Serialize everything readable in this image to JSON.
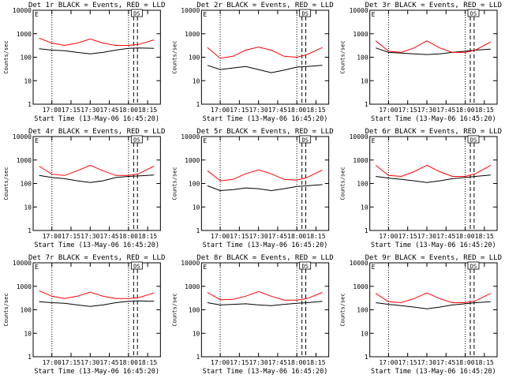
{
  "layout": {
    "rows": 3,
    "cols": 3
  },
  "colors": {
    "events": "#000000",
    "lld": "#ff0000",
    "axes": "#000000",
    "background": "#ffffff"
  },
  "chart_data": [
    {
      "type": "line",
      "title": "Det 1r BLACK = Events, RED = LLD",
      "ylabel": "Counts/sec",
      "xlabel": "Start Time (13-May-06 16:45:20)",
      "xticks": [
        "17:00",
        "17:15",
        "17:30",
        "17:45",
        "18:00",
        "18:15"
      ],
      "yticks": [
        "1",
        "10",
        "100",
        "1000",
        "10000"
      ],
      "ylim": [
        1,
        10000
      ],
      "yscale": "log",
      "x_range": [
        "16:45:20",
        "18:25:00"
      ],
      "legend_marks": [
        "E",
        "D",
        "S"
      ],
      "series": [
        {
          "x": [
            "16:50",
            "17:00",
            "17:10",
            "17:20",
            "17:30",
            "17:40",
            "17:50",
            "18:00",
            "18:08",
            "18:20"
          ],
          "values": [
            230,
            200,
            190,
            160,
            140,
            160,
            200,
            240,
            250,
            240
          ]
        },
        {
          "x": [
            "16:50",
            "17:00",
            "17:10",
            "17:20",
            "17:30",
            "17:40",
            "17:50",
            "18:00",
            "18:08",
            "18:20"
          ],
          "values": [
            650,
            400,
            320,
            400,
            600,
            400,
            320,
            320,
            350,
            550
          ]
        }
      ],
      "dotted_lines": [
        "17:00",
        "18:00"
      ],
      "dashed_lines": [
        "18:04",
        "18:07"
      ]
    },
    {
      "type": "line",
      "title": "Det 2r BLACK = Events, RED = LLD",
      "ylabel": "Counts/sec",
      "xlabel": "Start Time (13-May-06 16:45:20)",
      "xticks": [
        "17:00",
        "17:15",
        "17:30",
        "17:45",
        "18:00",
        "18:15"
      ],
      "yticks": [
        "1",
        "10",
        "100",
        "1000",
        "10000"
      ],
      "ylim": [
        1,
        10000
      ],
      "yscale": "log",
      "x_range": [
        "16:45:20",
        "18:25:00"
      ],
      "legend_marks": [
        "E",
        "D",
        "S"
      ],
      "series": [
        {
          "x": [
            "16:50",
            "17:00",
            "17:10",
            "17:20",
            "17:30",
            "17:40",
            "17:50",
            "18:00",
            "18:08",
            "18:20"
          ],
          "values": [
            45,
            30,
            35,
            40,
            30,
            22,
            28,
            38,
            40,
            45
          ]
        },
        {
          "x": [
            "16:50",
            "17:00",
            "17:10",
            "17:20",
            "17:30",
            "17:40",
            "17:50",
            "18:00",
            "18:08",
            "18:20"
          ],
          "values": [
            260,
            90,
            110,
            200,
            270,
            200,
            110,
            100,
            130,
            260
          ]
        }
      ],
      "dotted_lines": [
        "17:00",
        "18:00"
      ],
      "dashed_lines": [
        "18:04",
        "18:07"
      ]
    },
    {
      "type": "line",
      "title": "Det 3r BLACK = Events, RED = LLD",
      "ylabel": "Counts/sec",
      "xlabel": "Start Time (13-May-06 16:45:20)",
      "xticks": [
        "17:00",
        "17:15",
        "17:30",
        "17:45",
        "18:00",
        "18:15"
      ],
      "yticks": [
        "1",
        "10",
        "100",
        "1000",
        "10000"
      ],
      "ylim": [
        1,
        10000
      ],
      "yscale": "log",
      "x_range": [
        "16:45:20",
        "18:25:00"
      ],
      "legend_marks": [
        "E",
        "D",
        "S"
      ],
      "series": [
        {
          "x": [
            "16:50",
            "17:00",
            "17:10",
            "17:20",
            "17:30",
            "17:40",
            "17:50",
            "18:00",
            "18:08",
            "18:20"
          ],
          "values": [
            250,
            160,
            150,
            140,
            130,
            140,
            160,
            180,
            200,
            220
          ]
        },
        {
          "x": [
            "16:50",
            "17:00",
            "17:10",
            "17:20",
            "17:30",
            "17:40",
            "17:50",
            "18:00",
            "18:08",
            "18:20"
          ],
          "values": [
            500,
            180,
            160,
            250,
            500,
            250,
            160,
            160,
            200,
            450
          ]
        }
      ],
      "dotted_lines": [
        "17:00",
        "18:00"
      ],
      "dashed_lines": [
        "18:04",
        "18:07"
      ]
    },
    {
      "type": "line",
      "title": "Det 4r BLACK = Events, RED = LLD",
      "ylabel": "Counts/sec",
      "xlabel": "Start Time (13-May-06 16:45:20)",
      "xticks": [
        "17:00",
        "17:15",
        "17:30",
        "17:45",
        "18:00",
        "18:15"
      ],
      "yticks": [
        "1",
        "10",
        "100",
        "1000",
        "10000"
      ],
      "ylim": [
        1,
        10000
      ],
      "yscale": "log",
      "x_range": [
        "16:45:20",
        "18:25:00"
      ],
      "legend_marks": [
        "E",
        "D",
        "S"
      ],
      "series": [
        {
          "x": [
            "16:50",
            "17:00",
            "17:10",
            "17:20",
            "17:30",
            "17:40",
            "17:50",
            "18:00",
            "18:08",
            "18:20"
          ],
          "values": [
            220,
            180,
            160,
            130,
            110,
            130,
            180,
            200,
            210,
            230
          ]
        },
        {
          "x": [
            "16:50",
            "17:00",
            "17:10",
            "17:20",
            "17:30",
            "17:40",
            "17:50",
            "18:00",
            "18:08",
            "18:20"
          ],
          "values": [
            550,
            250,
            220,
            350,
            600,
            350,
            220,
            220,
            260,
            550
          ]
        }
      ],
      "dotted_lines": [
        "17:00",
        "18:00"
      ],
      "dashed_lines": [
        "18:04",
        "18:07"
      ]
    },
    {
      "type": "line",
      "title": "Det 5r BLACK = Events, RED = LLD",
      "ylabel": "Counts/sec",
      "xlabel": "Start Time (13-May-06 16:45:20)",
      "xticks": [
        "17:00",
        "17:15",
        "17:30",
        "17:45",
        "18:00",
        "18:15"
      ],
      "yticks": [
        "1",
        "10",
        "100",
        "1000",
        "10000"
      ],
      "ylim": [
        1,
        10000
      ],
      "yscale": "log",
      "x_range": [
        "16:45:20",
        "18:25:00"
      ],
      "legend_marks": [
        "E",
        "D",
        "S"
      ],
      "series": [
        {
          "x": [
            "16:50",
            "17:00",
            "17:10",
            "17:20",
            "17:30",
            "17:40",
            "17:50",
            "18:00",
            "18:08",
            "18:20"
          ],
          "values": [
            80,
            50,
            55,
            65,
            60,
            50,
            60,
            75,
            80,
            90
          ]
        },
        {
          "x": [
            "16:50",
            "17:00",
            "17:10",
            "17:20",
            "17:30",
            "17:40",
            "17:50",
            "18:00",
            "18:08",
            "18:20"
          ],
          "values": [
            350,
            130,
            150,
            260,
            380,
            260,
            150,
            140,
            180,
            380
          ]
        }
      ],
      "dotted_lines": [
        "17:00",
        "18:00"
      ],
      "dashed_lines": [
        "18:04",
        "18:07"
      ]
    },
    {
      "type": "line",
      "title": "Det 6r BLACK = Events, RED = LLD",
      "ylabel": "Counts/sec",
      "xlabel": "Start Time (13-May-06 16:45:20)",
      "xticks": [
        "17:00",
        "17:15",
        "17:30",
        "17:45",
        "18:00",
        "18:15"
      ],
      "yticks": [
        "1",
        "10",
        "100",
        "1000",
        "10000"
      ],
      "ylim": [
        1,
        10000
      ],
      "yscale": "log",
      "x_range": [
        "16:45:20",
        "18:25:00"
      ],
      "legend_marks": [
        "E",
        "D",
        "S"
      ],
      "series": [
        {
          "x": [
            "16:50",
            "17:00",
            "17:10",
            "17:20",
            "17:30",
            "17:40",
            "17:50",
            "18:00",
            "18:08",
            "18:20"
          ],
          "values": [
            200,
            170,
            150,
            130,
            110,
            130,
            160,
            180,
            200,
            230
          ]
        },
        {
          "x": [
            "16:50",
            "17:00",
            "17:10",
            "17:20",
            "17:30",
            "17:40",
            "17:50",
            "18:00",
            "18:08",
            "18:20"
          ],
          "values": [
            600,
            220,
            200,
            320,
            600,
            320,
            200,
            200,
            260,
            600
          ]
        }
      ],
      "dotted_lines": [
        "17:00",
        "18:00"
      ],
      "dashed_lines": [
        "18:04",
        "18:07"
      ]
    },
    {
      "type": "line",
      "title": "Det 7r BLACK = Events, RED = LLD",
      "ylabel": "Counts/sec",
      "xlabel": "Start Time (13-May-06 16:45:20)",
      "xticks": [
        "17:00",
        "17:15",
        "17:30",
        "17:45",
        "18:00",
        "18:15"
      ],
      "yticks": [
        "1",
        "10",
        "100",
        "1000",
        "10000"
      ],
      "ylim": [
        1,
        10000
      ],
      "yscale": "log",
      "x_range": [
        "16:45:20",
        "18:25:00"
      ],
      "legend_marks": [
        "E",
        "D",
        "S"
      ],
      "series": [
        {
          "x": [
            "16:50",
            "17:00",
            "17:10",
            "17:20",
            "17:30",
            "17:40",
            "17:50",
            "18:00",
            "18:08",
            "18:20"
          ],
          "values": [
            220,
            200,
            190,
            160,
            140,
            160,
            200,
            230,
            240,
            230
          ]
        },
        {
          "x": [
            "16:50",
            "17:00",
            "17:10",
            "17:20",
            "17:30",
            "17:40",
            "17:50",
            "18:00",
            "18:08",
            "18:20"
          ],
          "values": [
            650,
            380,
            300,
            380,
            560,
            380,
            300,
            300,
            330,
            520
          ]
        }
      ],
      "dotted_lines": [
        "17:00",
        "18:00"
      ],
      "dashed_lines": [
        "18:04",
        "18:07"
      ]
    },
    {
      "type": "line",
      "title": "Det 8r BLACK = Events, RED = LLD",
      "ylabel": "Counts/sec",
      "xlabel": "Start Time (13-May-06 16:45:20)",
      "xticks": [
        "17:00",
        "17:15",
        "17:30",
        "17:45",
        "18:00",
        "18:15"
      ],
      "yticks": [
        "1",
        "10",
        "100",
        "1000",
        "10000"
      ],
      "ylim": [
        1,
        10000
      ],
      "yscale": "log",
      "x_range": [
        "16:45:20",
        "18:25:00"
      ],
      "legend_marks": [
        "E",
        "D",
        "S"
      ],
      "series": [
        {
          "x": [
            "16:50",
            "17:00",
            "17:10",
            "17:20",
            "17:30",
            "17:40",
            "17:50",
            "18:00",
            "18:08",
            "18:20"
          ],
          "values": [
            200,
            160,
            170,
            180,
            160,
            150,
            170,
            190,
            200,
            230
          ]
        },
        {
          "x": [
            "16:50",
            "17:00",
            "17:10",
            "17:20",
            "17:30",
            "17:40",
            "17:50",
            "18:00",
            "18:08",
            "18:20"
          ],
          "values": [
            550,
            270,
            280,
            380,
            600,
            380,
            260,
            260,
            300,
            550
          ]
        }
      ],
      "dotted_lines": [
        "17:00",
        "18:00"
      ],
      "dashed_lines": [
        "18:04",
        "18:07"
      ]
    },
    {
      "type": "line",
      "title": "Det 9r BLACK = Events, RED = LLD",
      "ylabel": "Counts/sec",
      "xlabel": "Start Time (13-May-06 16:45:20)",
      "xticks": [
        "17:00",
        "17:15",
        "17:30",
        "17:45",
        "18:00",
        "18:15"
      ],
      "yticks": [
        "1",
        "10",
        "100",
        "1000",
        "10000"
      ],
      "ylim": [
        1,
        10000
      ],
      "yscale": "log",
      "x_range": [
        "16:45:20",
        "18:25:00"
      ],
      "legend_marks": [
        "E",
        "D",
        "S"
      ],
      "series": [
        {
          "x": [
            "16:50",
            "17:00",
            "17:10",
            "17:20",
            "17:30",
            "17:40",
            "17:50",
            "18:00",
            "18:08",
            "18:20"
          ],
          "values": [
            200,
            170,
            150,
            130,
            110,
            130,
            160,
            180,
            200,
            220
          ]
        },
        {
          "x": [
            "16:50",
            "17:00",
            "17:10",
            "17:20",
            "17:30",
            "17:40",
            "17:50",
            "18:00",
            "18:08",
            "18:20"
          ],
          "values": [
            500,
            220,
            200,
            300,
            520,
            300,
            200,
            200,
            240,
            500
          ]
        }
      ],
      "dotted_lines": [
        "17:00",
        "18:00"
      ],
      "dashed_lines": [
        "18:04",
        "18:07"
      ]
    }
  ]
}
